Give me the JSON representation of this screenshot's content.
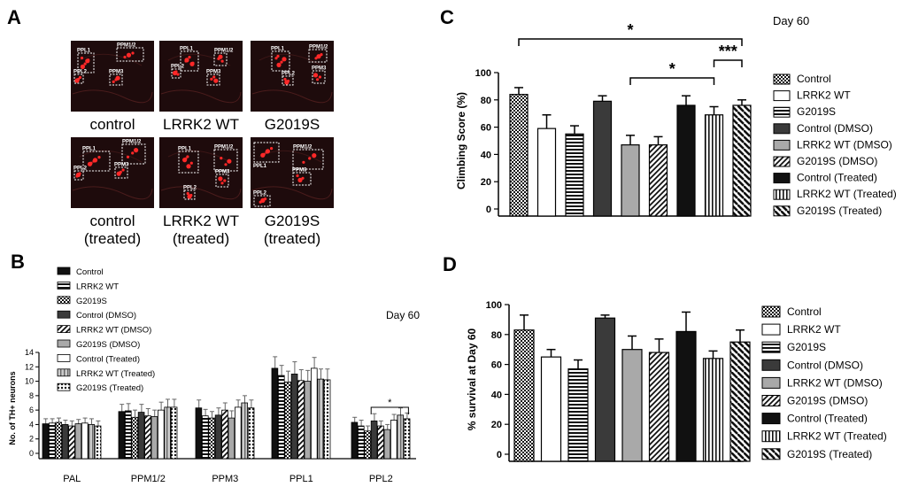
{
  "panels": {
    "A": {
      "letter": "A",
      "images": [
        {
          "label": "control",
          "rois": [
            "PPL1",
            "PPM1/2",
            "PPL2",
            "PPM3"
          ]
        },
        {
          "label": "LRRK2 WT",
          "rois": [
            "PPL1",
            "PPM1/2",
            "PPL2",
            "PPM3"
          ]
        },
        {
          "label": "G2019S",
          "rois": [
            "PPL1",
            "PPM1/2",
            "PPL2",
            "PPM3"
          ]
        },
        {
          "label": "control\n(treated)",
          "rois": [
            "PPL1",
            "PPM1/2",
            "PPL2",
            "PPM3"
          ]
        },
        {
          "label": "LRRK2 WT\n(treated)",
          "rois": [
            "PPL1",
            "PPM1/2",
            "PPL2",
            "PPM3"
          ]
        },
        {
          "label": "G2019S\n(treated)",
          "rois": [
            "PPL1",
            "PPM1/2",
            "PPL2",
            "PPM3"
          ]
        }
      ]
    },
    "B": {
      "letter": "B",
      "day": "Day 60",
      "sig": "*"
    },
    "C": {
      "letter": "C",
      "day": "Day 60",
      "sigs": [
        "*",
        "***",
        "*"
      ]
    },
    "D": {
      "letter": "D"
    }
  },
  "colors": {
    "fluor_bg": "#1e0b0c",
    "fluor_red": "#ff2828",
    "roi_box": "#ffffff"
  },
  "chart_data": [
    {
      "id": "B",
      "type": "bar",
      "title": "",
      "xlabel": "",
      "ylabel": "No. of TH+ neurons",
      "ylim": [
        0,
        14
      ],
      "yticks": [
        0,
        2,
        4,
        6,
        8,
        10,
        12,
        14
      ],
      "legend": "top-left",
      "categories": [
        "PAL",
        "PPM1/2",
        "PPM3",
        "PPL1",
        "PPL2"
      ],
      "series": [
        {
          "name": "Control",
          "pattern": "black",
          "values": [
            4.1,
            5.8,
            6.3,
            11.8,
            4.3
          ],
          "errors": [
            0.7,
            1.0,
            1.1,
            1.6,
            0.7
          ]
        },
        {
          "name": "LRRK2 WT",
          "pattern": "hstripe",
          "values": [
            4.2,
            5.9,
            5.2,
            10.8,
            3.8
          ],
          "errors": [
            0.6,
            1.0,
            0.9,
            1.4,
            0.8
          ]
        },
        {
          "name": "G2019S",
          "pattern": "check",
          "values": [
            4.3,
            5.0,
            4.9,
            9.9,
            3.1
          ],
          "errors": [
            0.6,
            1.0,
            0.9,
            1.5,
            0.7
          ]
        },
        {
          "name": "Control (DMSO)",
          "pattern": "darkgray",
          "values": [
            4.0,
            5.7,
            5.3,
            11.0,
            4.5
          ],
          "errors": [
            0.6,
            1.1,
            1.0,
            1.7,
            1.0
          ]
        },
        {
          "name": "LRRK2 WT (DMSO)",
          "pattern": "diag",
          "values": [
            3.8,
            5.2,
            6.0,
            10.1,
            3.8
          ],
          "errors": [
            0.7,
            1.0,
            1.0,
            1.5,
            0.7
          ]
        },
        {
          "name": "G2019S (DMSO)",
          "pattern": "lightgray",
          "values": [
            4.1,
            5.1,
            4.9,
            10.0,
            3.3
          ],
          "errors": [
            0.6,
            0.9,
            1.0,
            1.5,
            0.7
          ]
        },
        {
          "name": "Control (Treated)",
          "pattern": "white",
          "values": [
            4.2,
            6.0,
            6.4,
            11.8,
            4.6
          ],
          "errors": [
            0.7,
            1.1,
            1.0,
            1.5,
            0.8
          ]
        },
        {
          "name": "LRRK2 WT (Treated)",
          "pattern": "vgray",
          "values": [
            4.0,
            6.4,
            7.0,
            10.3,
            5.3
          ],
          "errors": [
            0.8,
            1.1,
            1.0,
            1.4,
            1.0
          ]
        },
        {
          "name": "G2019S (Treated)",
          "pattern": "dots",
          "values": [
            3.8,
            6.4,
            6.3,
            10.2,
            4.8
          ],
          "errors": [
            0.7,
            1.1,
            1.1,
            1.5,
            0.8
          ]
        }
      ]
    },
    {
      "id": "C",
      "type": "bar",
      "title": "",
      "xlabel": "",
      "ylabel": "Climbing Score (%)",
      "ylim": [
        0,
        100
      ],
      "yticks": [
        0,
        20,
        40,
        60,
        80,
        100
      ],
      "legend": "right",
      "categories": [
        "Control",
        "LRRK2 WT",
        "G2019S",
        "Control (DMSO)",
        "LRRK2 WT (DMSO)",
        "G2019S (DMSO)",
        "Control (Treated)",
        "LRRK2 WT (Treated)",
        "G2019S (Treated)"
      ],
      "patterns": [
        "check",
        "white",
        "hstripe",
        "darkgray",
        "lightgray",
        "diag",
        "black",
        "vstripe",
        "diagbold"
      ],
      "values": [
        84,
        59,
        55,
        79,
        47,
        47,
        76,
        69,
        76
      ],
      "errors": [
        5,
        10,
        6,
        4,
        7,
        6,
        7,
        6,
        4
      ]
    },
    {
      "id": "D",
      "type": "bar",
      "title": "",
      "xlabel": "",
      "ylabel": "% survival at Day 60",
      "ylim": [
        0,
        100
      ],
      "yticks": [
        0,
        20,
        40,
        60,
        80,
        100
      ],
      "legend": "right",
      "categories": [
        "Control",
        "LRRK2 WT",
        "G2019S",
        "Control (DMSO)",
        "LRRK2 WT (DMSO)",
        "G2019S (DMSO)",
        "Control (Treated)",
        "LRRK2 WT (Treated)",
        "G2019S (Treated)"
      ],
      "patterns": [
        "check",
        "white",
        "hstripe",
        "darkgray",
        "lightgray",
        "diag",
        "black",
        "vstripe",
        "diagbold"
      ],
      "values": [
        83,
        65,
        57,
        91,
        70,
        68,
        82,
        64,
        75
      ],
      "errors": [
        10,
        5,
        6,
        2,
        9,
        9,
        13,
        5,
        8
      ]
    }
  ]
}
